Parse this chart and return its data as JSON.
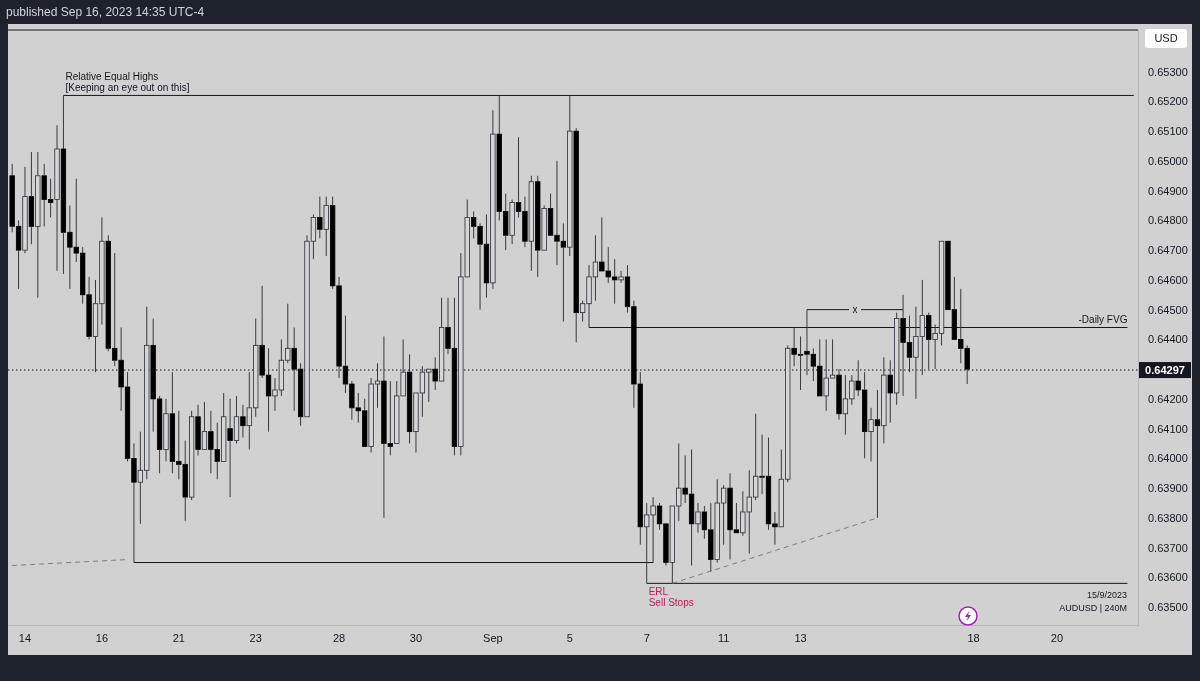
{
  "chart_data": {
    "type": "candlestick",
    "title": "published Sep 16, 2023 14:35 UTC-4",
    "categories": [
      null,
      null,
      "14",
      null,
      null,
      null,
      null,
      null,
      null,
      null,
      null,
      null,
      null,
      null,
      "16",
      null,
      null,
      null,
      null,
      null,
      null,
      null,
      null,
      null,
      null,
      null,
      "21",
      null,
      null,
      null,
      null,
      null,
      null,
      null,
      null,
      null,
      null,
      null,
      "23",
      null,
      null,
      null,
      null,
      null,
      null,
      null,
      null,
      null,
      null,
      null,
      null,
      "28",
      null,
      null,
      null,
      null,
      null,
      null,
      null,
      null,
      null,
      null,
      null,
      "30",
      null,
      null,
      null,
      null,
      null,
      null,
      null,
      null,
      null,
      null,
      null,
      "Sep",
      null,
      null,
      null,
      null,
      null,
      null,
      null,
      null,
      null,
      null,
      null,
      "5",
      null,
      null,
      null,
      null,
      null,
      null,
      null,
      null,
      null,
      null,
      null,
      "7",
      null,
      null,
      null,
      null,
      null,
      null,
      null,
      null,
      null,
      null,
      null,
      "11",
      null,
      null,
      null,
      null,
      null,
      null,
      null,
      null,
      null,
      null,
      null,
      "13",
      null,
      null,
      null,
      null,
      null,
      null,
      null,
      null,
      null,
      null,
      null,
      null,
      null,
      null,
      null,
      null,
      null,
      null,
      null,
      null,
      null,
      null,
      null,
      null,
      null,
      null,
      "18",
      null,
      null,
      null,
      null,
      null,
      null,
      null,
      null,
      null,
      null,
      null,
      null,
      "20",
      null,
      null,
      null,
      null,
      null,
      null,
      null,
      null,
      null,
      null,
      null,
      null
    ],
    "ohlc": [
      [
        0.6495,
        0.6499,
        0.6476,
        0.6478
      ],
      [
        0.6478,
        0.648,
        0.6457,
        0.647
      ],
      [
        0.647,
        0.6498,
        0.6469,
        0.6488
      ],
      [
        0.6488,
        0.6503,
        0.6472,
        0.6478
      ],
      [
        0.6478,
        0.6503,
        0.6454,
        0.6495
      ],
      [
        0.6495,
        0.6499,
        0.6478,
        0.6487
      ],
      [
        0.6487,
        0.6494,
        0.6481,
        0.6486
      ],
      [
        0.6487,
        0.6512,
        0.6463,
        0.6504
      ],
      [
        0.6504,
        0.6522,
        0.6462,
        0.6476
      ],
      [
        0.6476,
        0.6485,
        0.6457,
        0.6471
      ],
      [
        0.6471,
        0.6494,
        0.6466,
        0.6469
      ],
      [
        0.6469,
        0.6471,
        0.6452,
        0.6455
      ],
      [
        0.6455,
        0.6461,
        0.644,
        0.6441
      ],
      [
        0.6441,
        0.646,
        0.6429,
        0.6452
      ],
      [
        0.6452,
        0.6481,
        0.6445,
        0.6473
      ],
      [
        0.6473,
        0.6475,
        0.6436,
        0.6437
      ],
      [
        0.6437,
        0.6469,
        0.6431,
        0.6433
      ],
      [
        0.6433,
        0.6444,
        0.6416,
        0.6424
      ],
      [
        0.6424,
        0.6429,
        0.6399,
        0.64
      ],
      [
        0.64,
        0.6405,
        0.6365,
        0.6392
      ],
      [
        0.6392,
        0.6409,
        0.6378,
        0.6396
      ],
      [
        0.6396,
        0.6451,
        0.6393,
        0.6438
      ],
      [
        0.6438,
        0.6447,
        0.6409,
        0.642
      ],
      [
        0.642,
        0.6421,
        0.6395,
        0.6403
      ],
      [
        0.6403,
        0.642,
        0.6399,
        0.6415
      ],
      [
        0.6415,
        0.6429,
        0.6395,
        0.6399
      ],
      [
        0.6399,
        0.6416,
        0.6393,
        0.6398
      ],
      [
        0.6398,
        0.6406,
        0.6379,
        0.6387
      ],
      [
        0.6387,
        0.6416,
        0.6386,
        0.6414
      ],
      [
        0.6414,
        0.6418,
        0.6401,
        0.6403
      ],
      [
        0.6403,
        0.6419,
        0.6403,
        0.6409
      ],
      [
        0.6409,
        0.6416,
        0.6395,
        0.6403
      ],
      [
        0.6403,
        0.6412,
        0.6393,
        0.6399
      ],
      [
        0.6399,
        0.6422,
        0.6399,
        0.6414
      ],
      [
        0.641,
        0.642,
        0.6387,
        0.6406
      ],
      [
        0.6406,
        0.6421,
        0.6405,
        0.6414
      ],
      [
        0.6414,
        0.6418,
        0.6407,
        0.6411
      ],
      [
        0.6411,
        0.6429,
        0.6403,
        0.6417
      ],
      [
        0.6417,
        0.6447,
        0.6414,
        0.6438
      ],
      [
        0.6438,
        0.6458,
        0.6427,
        0.6428
      ],
      [
        0.6428,
        0.6437,
        0.6409,
        0.6421
      ],
      [
        0.6421,
        0.6427,
        0.6416,
        0.6423
      ],
      [
        0.6423,
        0.644,
        0.6421,
        0.6433
      ],
      [
        0.6433,
        0.6452,
        0.6432,
        0.6437
      ],
      [
        0.6437,
        0.6444,
        0.6416,
        0.643
      ],
      [
        0.643,
        0.6432,
        0.6411,
        0.6414
      ],
      [
        0.6414,
        0.6475,
        0.6414,
        0.6473
      ],
      [
        0.6473,
        0.6482,
        0.6467,
        0.6481
      ],
      [
        0.6481,
        0.6488,
        0.6474,
        0.6477
      ],
      [
        0.6477,
        0.6488,
        0.6468,
        0.6485
      ],
      [
        0.6485,
        0.6488,
        0.6457,
        0.6458
      ],
      [
        0.6458,
        0.6461,
        0.6427,
        0.6431
      ],
      [
        0.6431,
        0.6448,
        0.6422,
        0.6425
      ],
      [
        0.6425,
        0.6426,
        0.6413,
        0.6417
      ],
      [
        0.6417,
        0.6422,
        0.6412,
        0.6416
      ],
      [
        0.6416,
        0.642,
        0.6404,
        0.6404
      ],
      [
        0.6404,
        0.6427,
        0.6402,
        0.6425
      ],
      [
        0.6425,
        0.6432,
        0.6417,
        0.6426
      ],
      [
        0.6426,
        0.6441,
        0.638,
        0.6405
      ],
      [
        0.6405,
        0.6426,
        0.6401,
        0.6404
      ],
      [
        0.6405,
        0.6426,
        0.6405,
        0.6421
      ],
      [
        0.6421,
        0.644,
        0.6421,
        0.6429
      ],
      [
        0.6429,
        0.6435,
        0.6405,
        0.6409
      ],
      [
        0.6409,
        0.6422,
        0.6402,
        0.6422
      ],
      [
        0.6422,
        0.6431,
        0.6414,
        0.6429
      ],
      [
        0.6429,
        0.643,
        0.6419,
        0.643
      ],
      [
        0.643,
        0.6434,
        0.6423,
        0.6426
      ],
      [
        0.6426,
        0.6454,
        0.6426,
        0.6444
      ],
      [
        0.6444,
        0.6454,
        0.6435,
        0.6437
      ],
      [
        0.6437,
        0.6454,
        0.6401,
        0.6404
      ],
      [
        0.6404,
        0.6469,
        0.6401,
        0.6461
      ],
      [
        0.6461,
        0.6487,
        0.6461,
        0.6481
      ],
      [
        0.6481,
        0.6483,
        0.6474,
        0.6478
      ],
      [
        0.6478,
        0.6479,
        0.645,
        0.6472
      ],
      [
        0.6472,
        0.6482,
        0.6454,
        0.6459
      ],
      [
        0.6459,
        0.6517,
        0.6457,
        0.6509
      ],
      [
        0.6509,
        0.6522,
        0.648,
        0.6483
      ],
      [
        0.6483,
        0.6489,
        0.647,
        0.6475
      ],
      [
        0.6475,
        0.6487,
        0.6472,
        0.6486
      ],
      [
        0.6486,
        0.6508,
        0.6481,
        0.6483
      ],
      [
        0.6483,
        0.6488,
        0.6471,
        0.6473
      ],
      [
        0.6473,
        0.6495,
        0.6463,
        0.6493
      ],
      [
        0.6493,
        0.6495,
        0.6461,
        0.647
      ],
      [
        0.647,
        0.6485,
        0.647,
        0.6484
      ],
      [
        0.6484,
        0.6489,
        0.6475,
        0.6475
      ],
      [
        0.6475,
        0.65,
        0.6465,
        0.6473
      ],
      [
        0.6473,
        0.6479,
        0.6446,
        0.6471
      ],
      [
        0.6471,
        0.6522,
        0.6468,
        0.651
      ],
      [
        0.651,
        0.6511,
        0.6439,
        0.6449
      ],
      [
        0.6449,
        0.6453,
        0.6446,
        0.6452
      ],
      [
        0.6452,
        0.6465,
        0.6444,
        0.6461
      ],
      [
        0.6461,
        0.6475,
        0.6453,
        0.6466
      ],
      [
        0.6466,
        0.6481,
        0.6463,
        0.6463
      ],
      [
        0.6463,
        0.6471,
        0.6459,
        0.6461
      ],
      [
        0.6461,
        0.6467,
        0.6452,
        0.646
      ],
      [
        0.646,
        0.6463,
        0.6459,
        0.6461
      ],
      [
        0.6461,
        0.6465,
        0.6449,
        0.6451
      ],
      [
        0.6451,
        0.6453,
        0.6417,
        0.6425
      ],
      [
        0.6425,
        0.6429,
        0.6371,
        0.6377
      ],
      [
        0.6377,
        0.6385,
        0.6358,
        0.6381
      ],
      [
        0.6381,
        0.6387,
        0.6365,
        0.6384
      ],
      [
        0.6384,
        0.6385,
        0.6376,
        0.6378
      ],
      [
        0.6378,
        0.6378,
        0.6364,
        0.6365
      ],
      [
        0.6365,
        0.6384,
        0.6358,
        0.6384
      ],
      [
        0.6384,
        0.6405,
        0.6379,
        0.639
      ],
      [
        0.639,
        0.6401,
        0.6385,
        0.6388
      ],
      [
        0.6388,
        0.6403,
        0.6364,
        0.6378
      ],
      [
        0.6378,
        0.6385,
        0.6375,
        0.6382
      ],
      [
        0.6382,
        0.6384,
        0.6373,
        0.6376
      ],
      [
        0.6376,
        0.6385,
        0.6362,
        0.6366
      ],
      [
        0.6366,
        0.6393,
        0.6365,
        0.6385
      ],
      [
        0.6385,
        0.6391,
        0.6371,
        0.639
      ],
      [
        0.639,
        0.6395,
        0.6366,
        0.6376
      ],
      [
        0.6376,
        0.6385,
        0.6375,
        0.6375
      ],
      [
        0.6375,
        0.6389,
        0.6374,
        0.6382
      ],
      [
        0.6382,
        0.6396,
        0.6368,
        0.6387
      ],
      [
        0.6387,
        0.6415,
        0.6386,
        0.6394
      ],
      [
        0.6394,
        0.6408,
        0.6388,
        0.6394
      ],
      [
        0.6394,
        0.6407,
        0.6376,
        0.6378
      ],
      [
        0.6378,
        0.6382,
        0.6371,
        0.6377
      ],
      [
        0.6377,
        0.6403,
        0.6377,
        0.6393
      ],
      [
        0.6393,
        0.6438,
        0.6392,
        0.6437
      ],
      [
        0.6437,
        0.6444,
        0.6431,
        0.6435
      ],
      [
        0.6435,
        0.6441,
        0.6423,
        0.6435
      ],
      [
        0.6436,
        0.645,
        0.6428,
        0.6435
      ],
      [
        0.6435,
        0.6437,
        0.6426,
        0.6431
      ],
      [
        0.6431,
        0.644,
        0.6421,
        0.6421
      ],
      [
        0.6421,
        0.644,
        0.6416,
        0.6427
      ],
      [
        0.6427,
        0.644,
        0.6427,
        0.6428
      ],
      [
        0.6428,
        0.643,
        0.6413,
        0.6415
      ],
      [
        0.6415,
        0.6428,
        0.6408,
        0.642
      ],
      [
        0.642,
        0.6428,
        0.6418,
        0.6426
      ],
      [
        0.6426,
        0.6433,
        0.6421,
        0.6423
      ],
      [
        0.6423,
        0.6429,
        0.64,
        0.6409
      ],
      [
        0.6409,
        0.6417,
        0.6399,
        0.6413
      ],
      [
        0.6413,
        0.6423,
        0.638,
        0.6411
      ],
      [
        0.6411,
        0.6434,
        0.6405,
        0.6428
      ],
      [
        0.6428,
        0.6433,
        0.6412,
        0.6422
      ],
      [
        0.6422,
        0.6449,
        0.6418,
        0.6447
      ],
      [
        0.6447,
        0.6455,
        0.6421,
        0.6439
      ],
      [
        0.6439,
        0.6448,
        0.6429,
        0.6434
      ],
      [
        0.6434,
        0.6451,
        0.642,
        0.6441
      ],
      [
        0.6441,
        0.646,
        0.6428,
        0.6448
      ],
      [
        0.6448,
        0.6449,
        0.643,
        0.644
      ],
      [
        0.644,
        0.6445,
        0.643,
        0.6442
      ],
      [
        0.6442,
        0.6473,
        0.6438,
        0.6473
      ],
      [
        0.6473,
        0.6473,
        0.645,
        0.645
      ],
      [
        0.645,
        0.6461,
        0.644,
        0.644
      ],
      [
        0.644,
        0.6457,
        0.6432,
        0.6437
      ],
      [
        0.6437,
        0.6438,
        0.6425,
        0.643
      ],
      null,
      null,
      null,
      null,
      null,
      null,
      null,
      null,
      null,
      null,
      null,
      null,
      null,
      null,
      null,
      null,
      null,
      null,
      null,
      null,
      null,
      null,
      null,
      null,
      null,
      null
    ],
    "series": [
      {
        "type": "line",
        "name": "Relative Equal Highs\n[Keeping an eye out on this]",
        "color": "#131722",
        "line_style": "solid",
        "values": [
          null,
          null,
          null,
          null,
          null,
          null,
          null,
          null,
          0.6522,
          null,
          null,
          null,
          null,
          null,
          null,
          null,
          null,
          null,
          null,
          null,
          null,
          null,
          null,
          null,
          null,
          null,
          null,
          null,
          null,
          null,
          null,
          null,
          null,
          null,
          null,
          null,
          null,
          null,
          null,
          null,
          null,
          null,
          null,
          null,
          null,
          null,
          null,
          null,
          null,
          null,
          null,
          null,
          null,
          null,
          null,
          null,
          null,
          null,
          null,
          null,
          null,
          null,
          null,
          null,
          null,
          null,
          null,
          null,
          null,
          null,
          null,
          null,
          null,
          null,
          null,
          null,
          null,
          null,
          null,
          null,
          null,
          null,
          null,
          null,
          null,
          null,
          null,
          null,
          null,
          null,
          null,
          null,
          null,
          null,
          null,
          null,
          null,
          null,
          null,
          null,
          null,
          null,
          null,
          null,
          null,
          null,
          null,
          null,
          null,
          null,
          null,
          null,
          null,
          null,
          null,
          null,
          null,
          null,
          null,
          null,
          null,
          null,
          null,
          null,
          null,
          null,
          null,
          null,
          null,
          null,
          null,
          null,
          null,
          null,
          null,
          null,
          null,
          null,
          null,
          null,
          null,
          null,
          null,
          null,
          null,
          null,
          null,
          null,
          null,
          null,
          null,
          null,
          null,
          null,
          null,
          null,
          null,
          null,
          null,
          null,
          null,
          null,
          null,
          null,
          null,
          null,
          null,
          null,
          null,
          null,
          null,
          null,
          null,
          null,
          null,
          0.6522
        ]
      },
      {
        "type": "line",
        "color": "#131722",
        "line_style": "solid",
        "values": [
          null,
          null,
          null,
          null,
          null,
          null,
          null,
          null,
          null,
          null,
          null,
          null,
          null,
          null,
          null,
          null,
          null,
          null,
          null,
          0.6365,
          null,
          null,
          null,
          null,
          null,
          null,
          null,
          null,
          null,
          null,
          null,
          null,
          null,
          null,
          null,
          null,
          null,
          null,
          null,
          null,
          null,
          null,
          null,
          null,
          null,
          null,
          null,
          null,
          null,
          null,
          null,
          null,
          null,
          null,
          null,
          null,
          null,
          null,
          null,
          null,
          null,
          null,
          null,
          null,
          null,
          null,
          null,
          null,
          null,
          null,
          null,
          null,
          null,
          null,
          null,
          null,
          null,
          null,
          null,
          null,
          null,
          null,
          null,
          null,
          null,
          null,
          null,
          null,
          null,
          null,
          null,
          null,
          null,
          null,
          null,
          null,
          null,
          null,
          null,
          null,
          0.6365,
          null,
          null,
          null,
          null,
          null,
          null,
          null,
          null,
          null,
          null,
          null,
          null,
          null,
          null,
          null,
          null,
          null,
          null,
          null,
          null,
          null,
          null,
          null,
          null,
          null,
          null,
          null,
          null,
          null,
          null,
          null,
          null,
          null,
          null,
          null,
          null,
          null,
          null,
          null,
          null,
          null,
          null,
          null,
          null,
          null,
          null,
          null,
          null,
          null,
          null,
          null,
          null,
          null,
          null,
          null,
          null,
          null,
          null,
          null,
          null,
          null,
          null,
          null,
          null,
          null,
          null,
          null,
          null,
          null,
          null,
          null,
          null,
          null,
          null,
          null
        ]
      },
      {
        "type": "line",
        "name": "ERL\nSell Stops",
        "color": "#131722",
        "line_style": "solid",
        "values": [
          null,
          null,
          null,
          null,
          null,
          null,
          null,
          null,
          null,
          null,
          null,
          null,
          null,
          null,
          null,
          null,
          null,
          null,
          null,
          null,
          null,
          null,
          null,
          null,
          null,
          null,
          null,
          null,
          null,
          null,
          null,
          null,
          null,
          null,
          null,
          null,
          null,
          null,
          null,
          null,
          null,
          null,
          null,
          null,
          null,
          null,
          null,
          null,
          null,
          null,
          null,
          null,
          null,
          null,
          null,
          null,
          null,
          null,
          null,
          null,
          null,
          null,
          null,
          null,
          null,
          null,
          null,
          null,
          null,
          null,
          null,
          null,
          null,
          null,
          null,
          null,
          null,
          null,
          null,
          null,
          null,
          null,
          null,
          null,
          null,
          null,
          null,
          null,
          null,
          null,
          null,
          null,
          null,
          null,
          null,
          null,
          null,
          null,
          null,
          0.6358,
          null,
          null,
          null,
          null,
          null,
          null,
          null,
          null,
          null,
          null,
          null,
          null,
          null,
          null,
          null,
          null,
          null,
          null,
          null,
          null,
          null,
          null,
          null,
          null,
          null,
          null,
          null,
          null,
          null,
          null,
          null,
          null,
          null,
          null,
          null,
          null,
          null,
          null,
          null,
          null,
          null,
          null,
          null,
          null,
          null,
          null,
          null,
          null,
          null,
          null,
          null,
          null,
          null,
          null,
          null,
          null,
          null,
          null,
          null,
          null,
          null,
          null,
          null,
          null,
          null,
          null,
          null,
          null,
          null,
          null,
          null,
          null,
          null,
          null,
          0.6358,
          null
        ]
      },
      {
        "type": "line",
        "name": "-Daily FVG",
        "color": "#131722",
        "line_style": "solid",
        "values": [
          null,
          null,
          null,
          null,
          null,
          null,
          null,
          null,
          null,
          null,
          null,
          null,
          null,
          null,
          null,
          null,
          null,
          null,
          null,
          null,
          null,
          null,
          null,
          null,
          null,
          null,
          null,
          null,
          null,
          null,
          null,
          null,
          null,
          null,
          null,
          null,
          null,
          null,
          null,
          null,
          null,
          null,
          null,
          null,
          null,
          null,
          null,
          null,
          null,
          null,
          null,
          null,
          null,
          null,
          null,
          null,
          null,
          null,
          null,
          null,
          null,
          null,
          null,
          null,
          null,
          null,
          null,
          null,
          null,
          null,
          null,
          null,
          null,
          null,
          null,
          null,
          null,
          null,
          null,
          null,
          null,
          null,
          null,
          null,
          null,
          null,
          null,
          null,
          null,
          null,
          0.6444,
          null,
          null,
          null,
          null,
          null,
          null,
          null,
          null,
          null,
          null,
          null,
          null,
          null,
          null,
          null,
          null,
          null,
          null,
          null,
          null,
          null,
          null,
          null,
          null,
          null,
          null,
          null,
          null,
          null,
          null,
          null,
          null,
          null,
          null,
          null,
          null,
          null,
          null,
          null,
          null,
          null,
          null,
          null,
          null,
          null,
          null,
          null,
          null,
          null,
          null,
          null,
          null,
          null,
          null,
          null,
          null,
          null,
          null,
          null,
          null,
          null,
          null,
          null,
          null,
          null,
          null,
          null,
          null,
          null,
          null,
          null,
          null,
          null,
          null,
          null,
          null,
          null,
          null,
          null,
          null,
          null,
          null,
          null,
          0.6444,
          null
        ]
      },
      {
        "type": "line",
        "name": "x",
        "color": "#131722",
        "line_style": "solid",
        "values": [
          null,
          null,
          null,
          null,
          null,
          null,
          null,
          null,
          null,
          null,
          null,
          null,
          null,
          null,
          null,
          null,
          null,
          null,
          null,
          null,
          null,
          null,
          null,
          null,
          null,
          null,
          null,
          null,
          null,
          null,
          null,
          null,
          null,
          null,
          null,
          null,
          null,
          null,
          null,
          null,
          null,
          null,
          null,
          null,
          null,
          null,
          null,
          null,
          null,
          null,
          null,
          null,
          null,
          null,
          null,
          null,
          null,
          null,
          null,
          null,
          null,
          null,
          null,
          null,
          null,
          null,
          null,
          null,
          null,
          null,
          null,
          null,
          null,
          null,
          null,
          null,
          null,
          null,
          null,
          null,
          null,
          null,
          null,
          null,
          null,
          null,
          null,
          null,
          null,
          null,
          null,
          null,
          null,
          null,
          null,
          null,
          null,
          null,
          null,
          null,
          null,
          null,
          null,
          null,
          null,
          null,
          null,
          null,
          null,
          null,
          null,
          null,
          null,
          null,
          null,
          null,
          null,
          null,
          null,
          null,
          null,
          null,
          null,
          null,
          0.645,
          null,
          null,
          null,
          null,
          null,
          null,
          null,
          null,
          null,
          null,
          null,
          null,
          null,
          null,
          0.645,
          null,
          null,
          null,
          null,
          null,
          null,
          null,
          null,
          null,
          null,
          null,
          null,
          null,
          null,
          null,
          null,
          null,
          null,
          null,
          null,
          null,
          null,
          null,
          null,
          null,
          null,
          null,
          null,
          null,
          null,
          null,
          null,
          null,
          null,
          null,
          null
        ]
      },
      {
        "type": "line",
        "color": "#7b7e86",
        "line_style": "dashed",
        "values": [
          0.6364,
          null,
          null,
          null,
          null,
          null,
          null,
          null,
          null,
          null,
          null,
          null,
          null,
          null,
          null,
          null,
          null,
          null,
          0.6366,
          null,
          null,
          null,
          null,
          null,
          null,
          null,
          null,
          null,
          null,
          null,
          null,
          null,
          null,
          null,
          null,
          null,
          null,
          null,
          null,
          null,
          null,
          null,
          null,
          null,
          null,
          null,
          null,
          null,
          null,
          null,
          null,
          null,
          null,
          null,
          null,
          null,
          null,
          null,
          null,
          null,
          null,
          null,
          null,
          null,
          null,
          null,
          null,
          null,
          null,
          null,
          null,
          null,
          null,
          null,
          null,
          null,
          null,
          null,
          null,
          null,
          null,
          null,
          null,
          null,
          null,
          null,
          null,
          null,
          null,
          null,
          null,
          null,
          null,
          null,
          null,
          null,
          null,
          null,
          null,
          null,
          null,
          null,
          null,
          null,
          null,
          null,
          null,
          null,
          null,
          null,
          null,
          null,
          null,
          null,
          null,
          null,
          null,
          null,
          null,
          null,
          null,
          null,
          null,
          null,
          null,
          null,
          null,
          null,
          null,
          null,
          null,
          null,
          null,
          null,
          null,
          null,
          null,
          null,
          null,
          null,
          null,
          null,
          null,
          null,
          null,
          null,
          null,
          null,
          null,
          null,
          null,
          null,
          null,
          null,
          null,
          null,
          null,
          null,
          null,
          null,
          null,
          null,
          null,
          null,
          null,
          null,
          null,
          null,
          null,
          null,
          null,
          null,
          null,
          null,
          null,
          null
        ]
      },
      {
        "type": "line",
        "color": "#7b7e86",
        "line_style": "dashed",
        "values": [
          null,
          null,
          null,
          null,
          null,
          null,
          null,
          null,
          null,
          null,
          null,
          null,
          null,
          null,
          null,
          null,
          null,
          null,
          null,
          null,
          null,
          null,
          null,
          null,
          null,
          null,
          null,
          null,
          null,
          null,
          null,
          null,
          null,
          null,
          null,
          null,
          null,
          null,
          null,
          null,
          null,
          null,
          null,
          null,
          null,
          null,
          null,
          null,
          null,
          null,
          null,
          null,
          null,
          null,
          null,
          null,
          null,
          null,
          null,
          null,
          null,
          null,
          null,
          null,
          null,
          null,
          null,
          null,
          null,
          null,
          null,
          null,
          null,
          null,
          null,
          null,
          null,
          null,
          null,
          null,
          null,
          null,
          null,
          null,
          null,
          null,
          null,
          null,
          null,
          null,
          null,
          null,
          null,
          null,
          null,
          null,
          null,
          null,
          null,
          null,
          null,
          null,
          null,
          0.6358,
          null,
          null,
          null,
          null,
          null,
          null,
          null,
          null,
          null,
          null,
          null,
          null,
          null,
          null,
          null,
          null,
          null,
          null,
          null,
          null,
          null,
          null,
          null,
          null,
          null,
          null,
          null,
          null,
          null,
          null,
          null,
          0.638,
          null,
          null,
          null,
          null,
          null,
          null,
          null,
          null,
          null,
          null,
          null,
          null,
          null,
          null,
          null,
          null,
          null,
          null,
          null,
          null,
          null,
          null,
          null,
          null,
          null,
          null,
          null,
          null,
          null,
          null,
          null,
          null,
          null,
          null,
          null,
          null,
          null,
          null,
          null,
          null
        ]
      }
    ],
    "ylim": [
      0.6344,
      0.6544
    ],
    "yticks": [
      {
        "value": 0.635,
        "label": "0.63500"
      },
      {
        "value": 0.636,
        "label": "0.63600"
      },
      {
        "value": 0.637,
        "label": "0.63700"
      },
      {
        "value": 0.638,
        "label": "0.63800"
      },
      {
        "value": 0.639,
        "label": "0.63900"
      },
      {
        "value": 0.64,
        "label": "0.64000"
      },
      {
        "value": 0.641,
        "label": "0.64100"
      },
      {
        "value": 0.642,
        "label": "0.64200"
      },
      {
        "value": 0.644,
        "label": "0.64400"
      },
      {
        "value": 0.645,
        "label": "0.64500"
      },
      {
        "value": 0.646,
        "label": "0.64600"
      },
      {
        "value": 0.647,
        "label": "0.64700"
      },
      {
        "value": 0.648,
        "label": "0.64800"
      },
      {
        "value": 0.649,
        "label": "0.64900"
      },
      {
        "value": 0.65,
        "label": "0.65000"
      },
      {
        "value": 0.651,
        "label": "0.65100"
      },
      {
        "value": 0.652,
        "label": "0.65200"
      },
      {
        "value": 0.653,
        "label": "0.65300"
      }
    ],
    "ref_lines": [
      {
        "axis": "y",
        "value": 0.64297,
        "label": "0.64297",
        "color": "#131722",
        "line_style": "dotted"
      }
    ],
    "annotations": [
      "15/9/2023",
      "AUDUSD | 240M",
      "USD"
    ]
  }
}
